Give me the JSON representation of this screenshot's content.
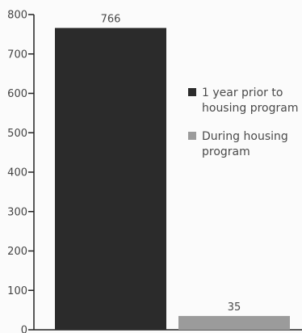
{
  "chart_data": {
    "type": "bar",
    "categories": [
      "",
      ""
    ],
    "series": [
      {
        "name": "1 year prior to housing program",
        "color": "#2b2b2b"
      },
      {
        "name": "During housing program",
        "color": "#9b9b9b"
      }
    ],
    "values": [
      766,
      35
    ],
    "data_labels": [
      "766",
      "35"
    ],
    "ylim": [
      0,
      800
    ],
    "yticks": [
      0,
      100,
      200,
      300,
      400,
      500,
      600,
      700,
      800
    ],
    "ytick_labels": [
      "0",
      "100",
      "200",
      "300",
      "400",
      "500",
      "600",
      "700",
      "800"
    ],
    "grid": false,
    "legend": {
      "placement": "right",
      "items": [
        {
          "lines": [
            "1 year prior to",
            "housing program"
          ],
          "color": "#2b2b2b"
        },
        {
          "lines": [
            "During housing",
            "program"
          ],
          "color": "#9b9b9b"
        }
      ]
    }
  }
}
